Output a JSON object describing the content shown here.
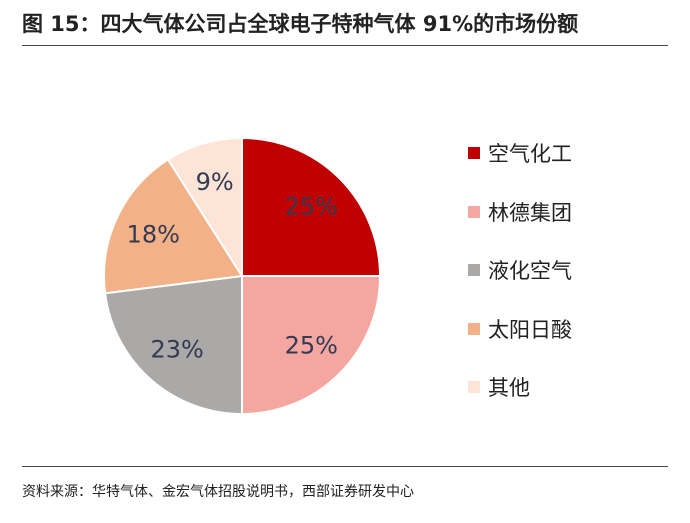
{
  "title": "图 15：四大气体公司占全球电子特种气体 91%的市场份额",
  "source": "资料来源：华特气体、金宏气体招股说明书，西部证券研发中心",
  "chart_data": {
    "type": "pie",
    "slices": [
      {
        "label": "空气化工",
        "value": 25,
        "display": "25%",
        "color": "#C00000"
      },
      {
        "label": "林德集团",
        "value": 25,
        "display": "25%",
        "color": "#F4A6A0"
      },
      {
        "label": "液化空气",
        "value": 23,
        "display": "23%",
        "color": "#ABA8A8"
      },
      {
        "label": "太阳日酸",
        "value": 18,
        "display": "18%",
        "color": "#F2B187"
      },
      {
        "label": "其他",
        "value": 9,
        "display": "9%",
        "color": "#FCE4D6"
      }
    ],
    "legend_position": "right"
  }
}
